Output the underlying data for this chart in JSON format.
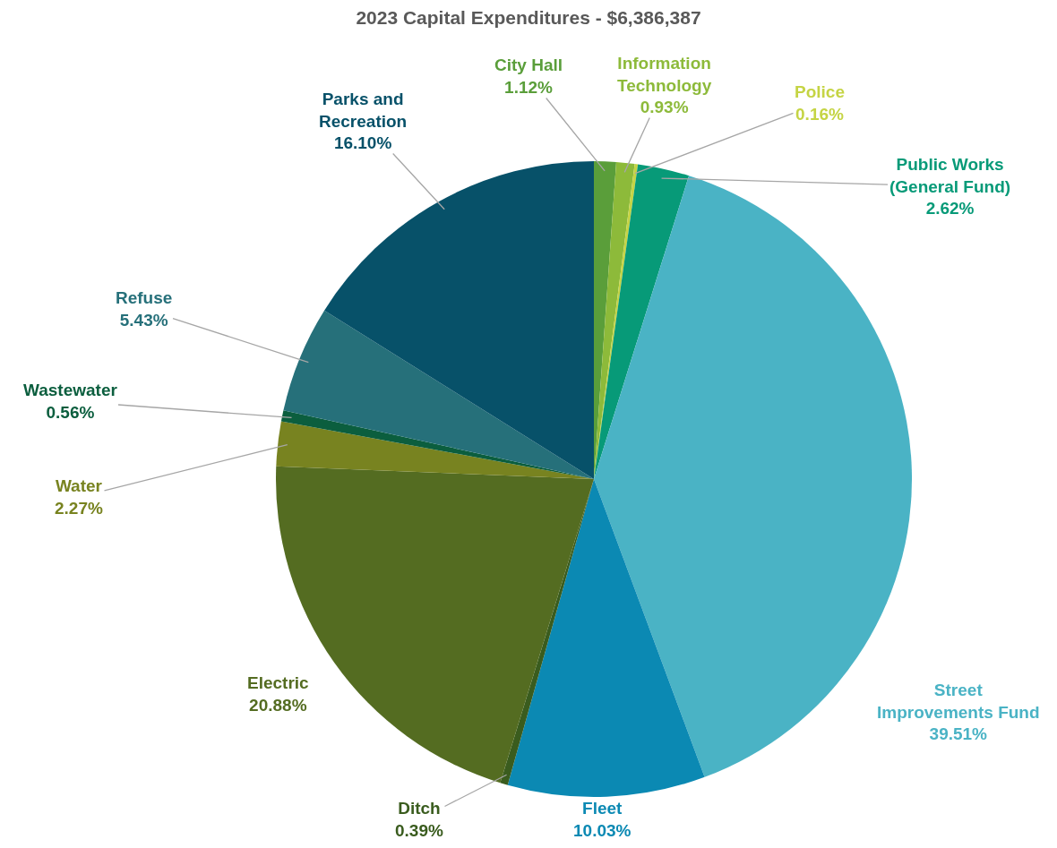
{
  "chart_data": {
    "type": "pie",
    "title": "2023 Capital Expenditures - $6,386,387",
    "categories": [
      "City Hall",
      "Information Technology",
      "Police",
      "Public Works (General Fund)",
      "Street Improvements Fund",
      "Fleet",
      "Ditch",
      "Electric",
      "Water",
      "Wastewater",
      "Refuse",
      "Parks and Recreation"
    ],
    "values": [
      1.12,
      0.93,
      0.16,
      2.62,
      39.51,
      10.03,
      0.39,
      20.88,
      2.27,
      0.56,
      5.43,
      16.1
    ],
    "colors": [
      "#5a9e3a",
      "#8dba3a",
      "#c5d444",
      "#079a78",
      "#4ab3c5",
      "#0b89b3",
      "#3a5c1e",
      "#546c21",
      "#788320",
      "#0b5e3e",
      "#26707a",
      "#075169"
    ],
    "value_labels": [
      "1.12%",
      "0.93%",
      "0.16%",
      "2.62%",
      "39.51%",
      "10.03%",
      "0.39%",
      "20.88%",
      "2.27%",
      "0.56%",
      "5.43%",
      "16.10%"
    ],
    "legend": false
  }
}
